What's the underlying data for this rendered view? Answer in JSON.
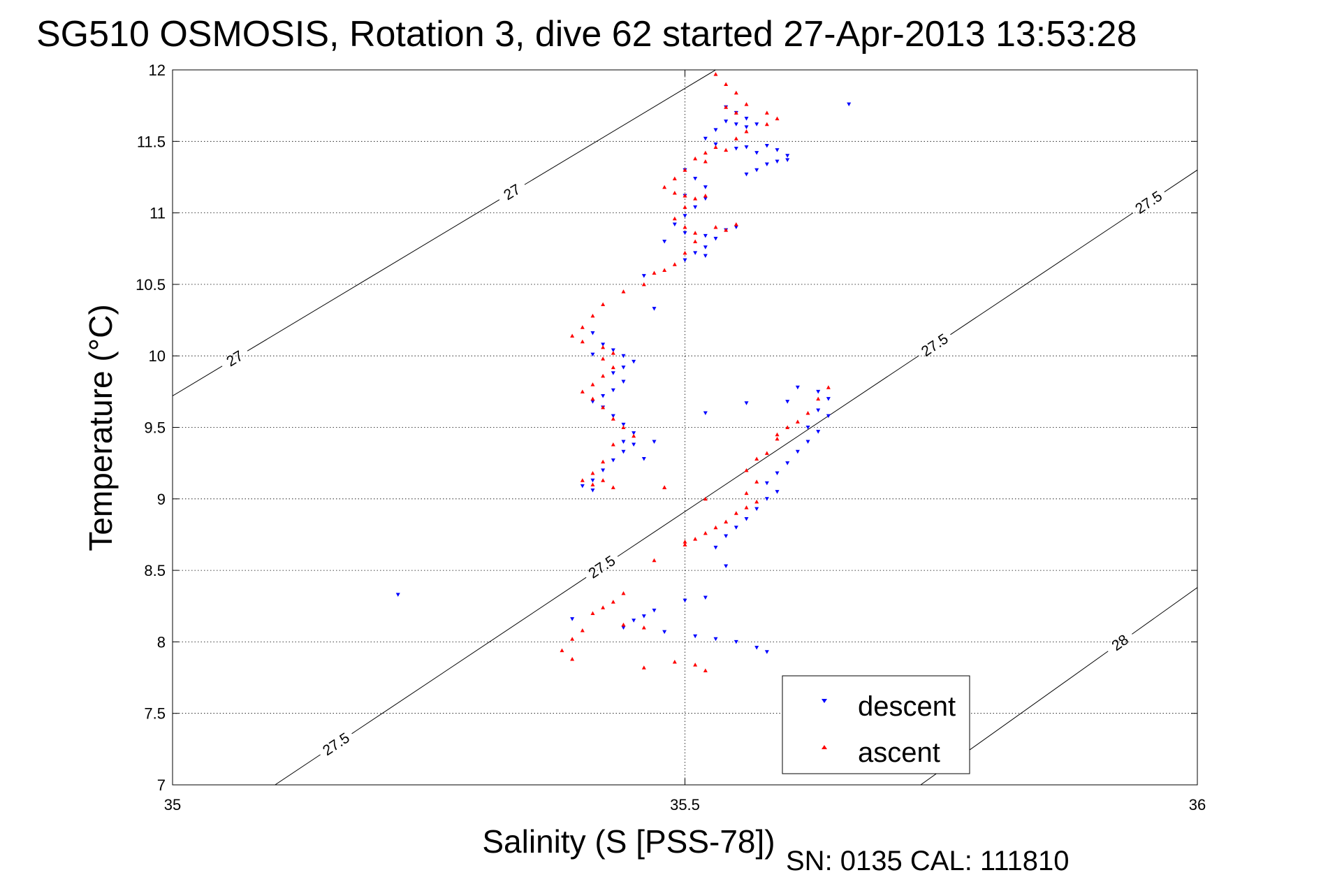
{
  "chart_data": {
    "type": "scatter",
    "title": "SG510 OSMOSIS, Rotation 3, dive 62 started 27-Apr-2013 13:53:28",
    "xlabel": "Salinity (S [PSS-78])",
    "ylabel": "Temperature (°C)",
    "xlim": [
      35,
      36
    ],
    "ylim": [
      7,
      12
    ],
    "xticks": [
      35,
      35.5,
      36
    ],
    "xtick_labels": [
      "35",
      "35.5",
      "36"
    ],
    "yticks": [
      7,
      7.5,
      8,
      8.5,
      9,
      9.5,
      10,
      10.5,
      11,
      11.5,
      12
    ],
    "ytick_labels": [
      "7",
      "7.5",
      "8",
      "8.5",
      "9",
      "9.5",
      "10",
      "10.5",
      "11",
      "11.5",
      "12"
    ],
    "grid": true,
    "legend_position": "bottom-right",
    "footer": "SN: 0135  CAL: 111810",
    "density_contours": [
      {
        "level": "27",
        "points": [
          [
            35,
            9.72
          ],
          [
            35.53,
            12.0
          ]
        ],
        "labels": [
          {
            "x": 35.06,
            "y": 9.99
          },
          {
            "x": 35.33,
            "y": 11.16
          }
        ]
      },
      {
        "level": "27.5",
        "points": [
          [
            35.1,
            7.0
          ],
          [
            36.0,
            11.3
          ]
        ],
        "labels": [
          {
            "x": 35.16,
            "y": 7.28
          },
          {
            "x": 35.41,
            "y": 8.62
          },
          {
            "x": 35.76,
            "y": 9.9
          },
          {
            "x": 35.95,
            "y": 11.1
          }
        ]
      },
      {
        "level": "28",
        "points": [
          [
            35.73,
            7.0
          ],
          [
            36.0,
            8.38
          ]
        ],
        "labels": [
          {
            "x": 35.92,
            "y": 8.04
          }
        ]
      }
    ],
    "series": [
      {
        "name": "descent",
        "color": "#0000ff",
        "marker": "triangle-down",
        "points": [
          [
            35.66,
            11.76
          ],
          [
            35.54,
            11.74
          ],
          [
            35.55,
            11.7
          ],
          [
            35.56,
            11.66
          ],
          [
            35.54,
            11.64
          ],
          [
            35.55,
            11.62
          ],
          [
            35.56,
            11.6
          ],
          [
            35.57,
            11.62
          ],
          [
            35.53,
            11.58
          ],
          [
            35.52,
            11.52
          ],
          [
            35.53,
            11.48
          ],
          [
            35.55,
            11.45
          ],
          [
            35.57,
            11.42
          ],
          [
            35.56,
            11.46
          ],
          [
            35.58,
            11.47
          ],
          [
            35.59,
            11.44
          ],
          [
            35.6,
            11.4
          ],
          [
            35.59,
            11.36
          ],
          [
            35.57,
            11.3
          ],
          [
            35.56,
            11.27
          ],
          [
            35.58,
            11.34
          ],
          [
            35.6,
            11.37
          ],
          [
            35.5,
            11.3
          ],
          [
            35.51,
            11.24
          ],
          [
            35.52,
            11.18
          ],
          [
            35.5,
            11.12
          ],
          [
            35.52,
            11.1
          ],
          [
            35.51,
            11.04
          ],
          [
            35.5,
            10.98
          ],
          [
            35.49,
            10.92
          ],
          [
            35.5,
            10.86
          ],
          [
            35.52,
            10.84
          ],
          [
            35.54,
            10.88
          ],
          [
            35.55,
            10.9
          ],
          [
            35.53,
            10.82
          ],
          [
            35.52,
            10.76
          ],
          [
            35.51,
            10.72
          ],
          [
            35.5,
            10.67
          ],
          [
            35.52,
            10.7
          ],
          [
            35.48,
            10.8
          ],
          [
            35.46,
            10.56
          ],
          [
            35.47,
            10.33
          ],
          [
            35.41,
            10.16
          ],
          [
            35.42,
            10.08
          ],
          [
            35.41,
            10.01
          ],
          [
            35.43,
            10.04
          ],
          [
            35.44,
            10.0
          ],
          [
            35.45,
            9.96
          ],
          [
            35.44,
            9.92
          ],
          [
            35.43,
            9.88
          ],
          [
            35.44,
            9.82
          ],
          [
            35.43,
            9.76
          ],
          [
            35.42,
            9.72
          ],
          [
            35.41,
            9.68
          ],
          [
            35.42,
            9.64
          ],
          [
            35.43,
            9.58
          ],
          [
            35.44,
            9.52
          ],
          [
            35.45,
            9.46
          ],
          [
            35.44,
            9.4
          ],
          [
            35.45,
            9.38
          ],
          [
            35.44,
            9.33
          ],
          [
            35.43,
            9.27
          ],
          [
            35.42,
            9.2
          ],
          [
            35.41,
            9.13
          ],
          [
            35.4,
            9.09
          ],
          [
            35.41,
            9.06
          ],
          [
            35.46,
            9.28
          ],
          [
            35.47,
            9.4
          ],
          [
            35.52,
            9.6
          ],
          [
            35.56,
            9.67
          ],
          [
            35.6,
            9.68
          ],
          [
            35.61,
            9.78
          ],
          [
            35.63,
            9.75
          ],
          [
            35.64,
            9.7
          ],
          [
            35.63,
            9.62
          ],
          [
            35.64,
            9.58
          ],
          [
            35.62,
            9.5
          ],
          [
            35.63,
            9.47
          ],
          [
            35.62,
            9.4
          ],
          [
            35.61,
            9.33
          ],
          [
            35.6,
            9.25
          ],
          [
            35.59,
            9.18
          ],
          [
            35.58,
            9.11
          ],
          [
            35.59,
            9.05
          ],
          [
            35.58,
            9.0
          ],
          [
            35.57,
            8.93
          ],
          [
            35.56,
            8.86
          ],
          [
            35.55,
            8.8
          ],
          [
            35.54,
            8.74
          ],
          [
            35.53,
            8.66
          ],
          [
            35.54,
            8.53
          ],
          [
            35.52,
            8.31
          ],
          [
            35.5,
            8.29
          ],
          [
            35.47,
            8.22
          ],
          [
            35.46,
            8.18
          ],
          [
            35.45,
            8.15
          ],
          [
            35.44,
            8.1
          ],
          [
            35.48,
            8.07
          ],
          [
            35.51,
            8.04
          ],
          [
            35.53,
            8.02
          ],
          [
            35.55,
            8.0
          ],
          [
            35.57,
            7.96
          ],
          [
            35.58,
            7.93
          ],
          [
            35.39,
            8.16
          ],
          [
            35.22,
            8.33
          ]
        ]
      },
      {
        "name": "ascent",
        "color": "#ff0000",
        "marker": "triangle-up",
        "points": [
          [
            35.53,
            11.97
          ],
          [
            35.54,
            11.9
          ],
          [
            35.55,
            11.84
          ],
          [
            35.56,
            11.76
          ],
          [
            35.54,
            11.74
          ],
          [
            35.55,
            11.7
          ],
          [
            35.58,
            11.7
          ],
          [
            35.59,
            11.66
          ],
          [
            35.58,
            11.62
          ],
          [
            35.56,
            11.57
          ],
          [
            35.55,
            11.52
          ],
          [
            35.53,
            11.46
          ],
          [
            35.52,
            11.42
          ],
          [
            35.51,
            11.38
          ],
          [
            35.52,
            11.36
          ],
          [
            35.54,
            11.44
          ],
          [
            35.5,
            11.3
          ],
          [
            35.49,
            11.24
          ],
          [
            35.48,
            11.18
          ],
          [
            35.49,
            11.14
          ],
          [
            35.5,
            11.12
          ],
          [
            35.51,
            11.1
          ],
          [
            35.52,
            11.12
          ],
          [
            35.5,
            11.04
          ],
          [
            35.49,
            10.96
          ],
          [
            35.5,
            10.9
          ],
          [
            35.51,
            10.86
          ],
          [
            35.53,
            10.9
          ],
          [
            35.55,
            10.92
          ],
          [
            35.54,
            10.88
          ],
          [
            35.51,
            10.8
          ],
          [
            35.5,
            10.72
          ],
          [
            35.49,
            10.64
          ],
          [
            35.48,
            10.6
          ],
          [
            35.47,
            10.58
          ],
          [
            35.46,
            10.5
          ],
          [
            35.44,
            10.45
          ],
          [
            35.42,
            10.36
          ],
          [
            35.41,
            10.28
          ],
          [
            35.4,
            10.2
          ],
          [
            35.39,
            10.14
          ],
          [
            35.4,
            10.1
          ],
          [
            35.42,
            10.06
          ],
          [
            35.43,
            10.02
          ],
          [
            35.42,
            9.98
          ],
          [
            35.43,
            9.92
          ],
          [
            35.42,
            9.86
          ],
          [
            35.41,
            9.8
          ],
          [
            35.4,
            9.75
          ],
          [
            35.41,
            9.7
          ],
          [
            35.42,
            9.64
          ],
          [
            35.43,
            9.56
          ],
          [
            35.44,
            9.5
          ],
          [
            35.45,
            9.44
          ],
          [
            35.43,
            9.38
          ],
          [
            35.42,
            9.26
          ],
          [
            35.41,
            9.18
          ],
          [
            35.4,
            9.13
          ],
          [
            35.41,
            9.1
          ],
          [
            35.42,
            9.13
          ],
          [
            35.43,
            9.08
          ],
          [
            35.48,
            9.08
          ],
          [
            35.59,
            9.45
          ],
          [
            35.6,
            9.5
          ],
          [
            35.62,
            9.6
          ],
          [
            35.63,
            9.7
          ],
          [
            35.64,
            9.78
          ],
          [
            35.61,
            9.54
          ],
          [
            35.59,
            9.42
          ],
          [
            35.58,
            9.32
          ],
          [
            35.57,
            9.28
          ],
          [
            35.56,
            9.2
          ],
          [
            35.57,
            9.12
          ],
          [
            35.56,
            9.04
          ],
          [
            35.57,
            8.98
          ],
          [
            35.56,
            8.94
          ],
          [
            35.55,
            8.9
          ],
          [
            35.54,
            8.84
          ],
          [
            35.53,
            8.8
          ],
          [
            35.52,
            8.76
          ],
          [
            35.51,
            8.72
          ],
          [
            35.5,
            8.68
          ],
          [
            35.47,
            8.57
          ],
          [
            35.5,
            8.7
          ],
          [
            35.44,
            8.34
          ],
          [
            35.43,
            8.28
          ],
          [
            35.42,
            8.24
          ],
          [
            35.41,
            8.2
          ],
          [
            35.4,
            8.08
          ],
          [
            35.39,
            8.02
          ],
          [
            35.38,
            7.94
          ],
          [
            35.39,
            7.88
          ],
          [
            35.44,
            8.12
          ],
          [
            35.46,
            8.1
          ],
          [
            35.49,
            7.86
          ],
          [
            35.51,
            7.84
          ],
          [
            35.52,
            7.8
          ],
          [
            35.46,
            7.82
          ],
          [
            35.48,
            9.08
          ],
          [
            35.52,
            9.0
          ]
        ]
      }
    ]
  }
}
